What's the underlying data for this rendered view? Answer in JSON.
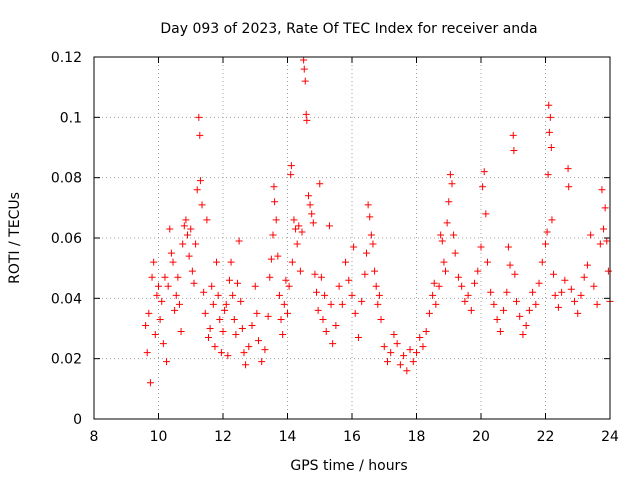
{
  "chart_data": {
    "type": "scatter",
    "title": "Day 093 of 2023, Rate Of TEC Index for receiver anda",
    "xlabel": "GPS time / hours",
    "ylabel": "ROTI / TECUs",
    "xlim": [
      8,
      24
    ],
    "ylim": [
      0,
      0.12
    ],
    "xticks": [
      8,
      10,
      12,
      14,
      16,
      18,
      20,
      22,
      24
    ],
    "xtick_labels": [
      "8",
      "10",
      "12",
      "14",
      "16",
      "18",
      "20",
      "22",
      "24"
    ],
    "yticks": [
      0,
      0.02,
      0.04,
      0.06,
      0.08,
      0.1,
      0.12
    ],
    "ytick_labels": [
      "0",
      "0.02",
      "0.04",
      "0.06",
      "0.08",
      "0.1",
      "0.12"
    ],
    "grid": true,
    "marker": "plus",
    "color": "#ff0000",
    "series": [
      {
        "name": "",
        "points": [
          [
            9.6,
            0.031
          ],
          [
            9.65,
            0.022
          ],
          [
            9.7,
            0.035
          ],
          [
            9.75,
            0.012
          ],
          [
            9.8,
            0.047
          ],
          [
            9.85,
            0.052
          ],
          [
            9.9,
            0.028
          ],
          [
            9.95,
            0.041
          ],
          [
            10.0,
            0.044
          ],
          [
            10.05,
            0.033
          ],
          [
            10.1,
            0.039
          ],
          [
            10.15,
            0.025
          ],
          [
            10.2,
            0.047
          ],
          [
            10.25,
            0.019
          ],
          [
            10.3,
            0.044
          ],
          [
            10.35,
            0.063
          ],
          [
            10.4,
            0.055
          ],
          [
            10.45,
            0.052
          ],
          [
            10.5,
            0.036
          ],
          [
            10.55,
            0.041
          ],
          [
            10.6,
            0.047
          ],
          [
            10.65,
            0.038
          ],
          [
            10.7,
            0.029
          ],
          [
            10.75,
            0.058
          ],
          [
            10.8,
            0.064
          ],
          [
            10.85,
            0.066
          ],
          [
            10.9,
            0.061
          ],
          [
            10.95,
            0.054
          ],
          [
            11.0,
            0.063
          ],
          [
            11.05,
            0.049
          ],
          [
            11.1,
            0.045
          ],
          [
            11.15,
            0.058
          ],
          [
            11.2,
            0.076
          ],
          [
            11.25,
            0.1
          ],
          [
            11.28,
            0.094
          ],
          [
            11.3,
            0.079
          ],
          [
            11.35,
            0.071
          ],
          [
            11.4,
            0.042
          ],
          [
            11.45,
            0.035
          ],
          [
            11.5,
            0.066
          ],
          [
            11.55,
            0.027
          ],
          [
            11.6,
            0.03
          ],
          [
            11.65,
            0.044
          ],
          [
            11.7,
            0.038
          ],
          [
            11.75,
            0.024
          ],
          [
            11.8,
            0.052
          ],
          [
            11.85,
            0.041
          ],
          [
            11.9,
            0.033
          ],
          [
            11.95,
            0.022
          ],
          [
            12.0,
            0.029
          ],
          [
            12.05,
            0.036
          ],
          [
            12.1,
            0.038
          ],
          [
            12.15,
            0.021
          ],
          [
            12.2,
            0.046
          ],
          [
            12.25,
            0.052
          ],
          [
            12.3,
            0.041
          ],
          [
            12.35,
            0.033
          ],
          [
            12.4,
            0.028
          ],
          [
            12.45,
            0.045
          ],
          [
            12.5,
            0.059
          ],
          [
            12.55,
            0.039
          ],
          [
            12.6,
            0.03
          ],
          [
            12.65,
            0.022
          ],
          [
            12.7,
            0.018
          ],
          [
            12.8,
            0.024
          ],
          [
            12.9,
            0.031
          ],
          [
            13.0,
            0.044
          ],
          [
            13.05,
            0.035
          ],
          [
            13.1,
            0.026
          ],
          [
            13.2,
            0.019
          ],
          [
            13.3,
            0.023
          ],
          [
            13.4,
            0.034
          ],
          [
            13.45,
            0.047
          ],
          [
            13.5,
            0.053
          ],
          [
            13.55,
            0.061
          ],
          [
            13.58,
            0.077
          ],
          [
            13.6,
            0.072
          ],
          [
            13.65,
            0.066
          ],
          [
            13.7,
            0.054
          ],
          [
            13.75,
            0.041
          ],
          [
            13.8,
            0.033
          ],
          [
            13.85,
            0.028
          ],
          [
            13.9,
            0.038
          ],
          [
            13.95,
            0.046
          ],
          [
            14.0,
            0.035
          ],
          [
            14.05,
            0.044
          ],
          [
            14.1,
            0.081
          ],
          [
            14.12,
            0.084
          ],
          [
            14.15,
            0.052
          ],
          [
            14.2,
            0.066
          ],
          [
            14.25,
            0.063
          ],
          [
            14.3,
            0.058
          ],
          [
            14.35,
            0.064
          ],
          [
            14.4,
            0.049
          ],
          [
            14.45,
            0.062
          ],
          [
            14.5,
            0.119
          ],
          [
            14.52,
            0.116
          ],
          [
            14.55,
            0.112
          ],
          [
            14.58,
            0.101
          ],
          [
            14.6,
            0.099
          ],
          [
            14.65,
            0.074
          ],
          [
            14.7,
            0.071
          ],
          [
            14.75,
            0.068
          ],
          [
            14.8,
            0.065
          ],
          [
            14.85,
            0.048
          ],
          [
            14.9,
            0.042
          ],
          [
            14.95,
            0.036
          ],
          [
            15.0,
            0.078
          ],
          [
            15.05,
            0.047
          ],
          [
            15.1,
            0.033
          ],
          [
            15.15,
            0.041
          ],
          [
            15.2,
            0.029
          ],
          [
            15.3,
            0.064
          ],
          [
            15.35,
            0.038
          ],
          [
            15.4,
            0.025
          ],
          [
            15.5,
            0.031
          ],
          [
            15.6,
            0.044
          ],
          [
            15.7,
            0.038
          ],
          [
            15.8,
            0.052
          ],
          [
            15.9,
            0.046
          ],
          [
            16.0,
            0.041
          ],
          [
            16.05,
            0.057
          ],
          [
            16.1,
            0.035
          ],
          [
            16.2,
            0.027
          ],
          [
            16.3,
            0.039
          ],
          [
            16.4,
            0.048
          ],
          [
            16.45,
            0.055
          ],
          [
            16.5,
            0.071
          ],
          [
            16.55,
            0.067
          ],
          [
            16.6,
            0.061
          ],
          [
            16.65,
            0.058
          ],
          [
            16.7,
            0.049
          ],
          [
            16.75,
            0.044
          ],
          [
            16.8,
            0.038
          ],
          [
            16.85,
            0.041
          ],
          [
            16.9,
            0.033
          ],
          [
            17.0,
            0.024
          ],
          [
            17.1,
            0.019
          ],
          [
            17.2,
            0.022
          ],
          [
            17.3,
            0.028
          ],
          [
            17.4,
            0.025
          ],
          [
            17.5,
            0.018
          ],
          [
            17.6,
            0.021
          ],
          [
            17.7,
            0.016
          ],
          [
            17.8,
            0.023
          ],
          [
            17.9,
            0.019
          ],
          [
            18.0,
            0.022
          ],
          [
            18.1,
            0.027
          ],
          [
            18.2,
            0.024
          ],
          [
            18.3,
            0.029
          ],
          [
            18.4,
            0.035
          ],
          [
            18.5,
            0.041
          ],
          [
            18.55,
            0.045
          ],
          [
            18.6,
            0.038
          ],
          [
            18.7,
            0.044
          ],
          [
            18.75,
            0.061
          ],
          [
            18.8,
            0.059
          ],
          [
            18.85,
            0.052
          ],
          [
            18.9,
            0.049
          ],
          [
            18.95,
            0.065
          ],
          [
            19.0,
            0.072
          ],
          [
            19.05,
            0.081
          ],
          [
            19.1,
            0.078
          ],
          [
            19.15,
            0.061
          ],
          [
            19.2,
            0.055
          ],
          [
            19.3,
            0.047
          ],
          [
            19.4,
            0.044
          ],
          [
            19.5,
            0.039
          ],
          [
            19.6,
            0.041
          ],
          [
            19.7,
            0.036
          ],
          [
            19.8,
            0.045
          ],
          [
            19.9,
            0.049
          ],
          [
            20.0,
            0.057
          ],
          [
            20.05,
            0.077
          ],
          [
            20.1,
            0.082
          ],
          [
            20.15,
            0.068
          ],
          [
            20.2,
            0.052
          ],
          [
            20.3,
            0.042
          ],
          [
            20.4,
            0.038
          ],
          [
            20.5,
            0.033
          ],
          [
            20.6,
            0.029
          ],
          [
            20.7,
            0.036
          ],
          [
            20.8,
            0.042
          ],
          [
            20.85,
            0.057
          ],
          [
            20.9,
            0.051
          ],
          [
            21.0,
            0.094
          ],
          [
            21.02,
            0.089
          ],
          [
            21.05,
            0.048
          ],
          [
            21.1,
            0.039
          ],
          [
            21.2,
            0.034
          ],
          [
            21.3,
            0.028
          ],
          [
            21.4,
            0.031
          ],
          [
            21.5,
            0.036
          ],
          [
            21.6,
            0.042
          ],
          [
            21.7,
            0.038
          ],
          [
            21.8,
            0.045
          ],
          [
            21.9,
            0.052
          ],
          [
            22.0,
            0.058
          ],
          [
            22.05,
            0.062
          ],
          [
            22.08,
            0.081
          ],
          [
            22.1,
            0.104
          ],
          [
            22.12,
            0.095
          ],
          [
            22.15,
            0.1
          ],
          [
            22.18,
            0.09
          ],
          [
            22.2,
            0.066
          ],
          [
            22.25,
            0.048
          ],
          [
            22.3,
            0.041
          ],
          [
            22.4,
            0.037
          ],
          [
            22.5,
            0.042
          ],
          [
            22.6,
            0.046
          ],
          [
            22.7,
            0.083
          ],
          [
            22.72,
            0.077
          ],
          [
            22.8,
            0.043
          ],
          [
            22.9,
            0.039
          ],
          [
            23.0,
            0.035
          ],
          [
            23.1,
            0.041
          ],
          [
            23.2,
            0.047
          ],
          [
            23.3,
            0.051
          ],
          [
            23.4,
            0.061
          ],
          [
            23.5,
            0.044
          ],
          [
            23.6,
            0.038
          ],
          [
            23.7,
            0.058
          ],
          [
            23.75,
            0.076
          ],
          [
            23.8,
            0.063
          ],
          [
            23.85,
            0.07
          ],
          [
            23.9,
            0.059
          ],
          [
            23.95,
            0.049
          ],
          [
            24.0,
            0.039
          ]
        ]
      }
    ]
  }
}
